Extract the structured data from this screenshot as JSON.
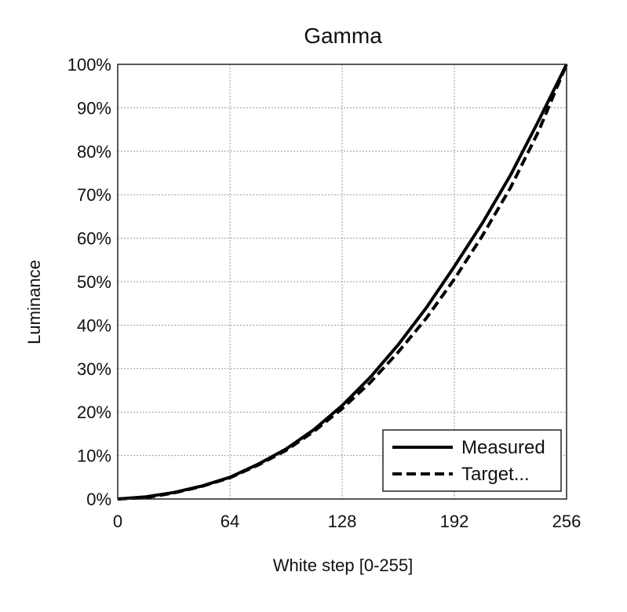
{
  "chart_data": {
    "type": "line",
    "title": "Gamma",
    "xlabel": "White step [0-255]",
    "ylabel": "Luminance",
    "xlim": [
      0,
      256
    ],
    "ylim": [
      0,
      100
    ],
    "x_ticks": [
      0,
      64,
      128,
      192,
      256
    ],
    "x_tick_labels": [
      "0",
      "64",
      "128",
      "192",
      "256"
    ],
    "y_ticks": [
      0,
      10,
      20,
      30,
      40,
      50,
      60,
      70,
      80,
      90,
      100
    ],
    "y_tick_labels": [
      "0%",
      "10%",
      "20%",
      "30%",
      "40%",
      "50%",
      "60%",
      "70%",
      "80%",
      "90%",
      "100%"
    ],
    "grid": true,
    "legend": {
      "placement": "bottom-right"
    },
    "series": [
      {
        "name": "Measured",
        "style": "solid",
        "color": "#000000",
        "x": [
          0,
          16,
          32,
          48,
          64,
          80,
          96,
          112,
          128,
          144,
          160,
          176,
          192,
          208,
          224,
          240,
          256
        ],
        "y": [
          0,
          0.5,
          1.5,
          3.0,
          5.0,
          8.0,
          11.5,
          16.0,
          21.5,
          28.0,
          35.5,
          44.0,
          53.5,
          63.5,
          74.5,
          87.0,
          100
        ]
      },
      {
        "name": "Target...",
        "style": "dashed",
        "color": "#000000",
        "x": [
          0,
          16,
          32,
          48,
          64,
          80,
          96,
          112,
          128,
          144,
          160,
          176,
          192,
          208,
          224,
          240,
          256
        ],
        "y": [
          0,
          0.3,
          1.4,
          2.9,
          4.9,
          7.8,
          11.2,
          15.6,
          20.8,
          26.8,
          33.8,
          41.6,
          50.6,
          60.6,
          71.6,
          84.6,
          100
        ]
      }
    ]
  }
}
